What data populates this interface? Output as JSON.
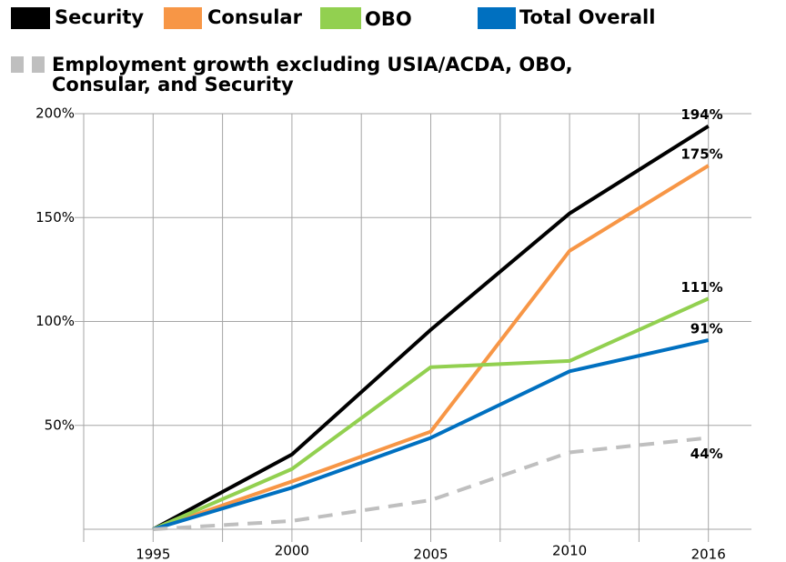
{
  "chart_data": {
    "type": "line",
    "categories": [
      "1995",
      "2000",
      "2005",
      "2010",
      "2016"
    ],
    "ylim": [
      0,
      200
    ],
    "yticks": [
      {
        "value": 50,
        "label": "50%"
      },
      {
        "value": 100,
        "label": "100%"
      },
      {
        "value": 150,
        "label": "150%"
      },
      {
        "value": 200,
        "label": "200%"
      }
    ],
    "grid": true,
    "legend": "top",
    "series": [
      {
        "name": "Security",
        "color": "#000000",
        "values": [
          0,
          36,
          96,
          152,
          194
        ],
        "value_labels": [
          null,
          null,
          null,
          null,
          "194%"
        ]
      },
      {
        "name": "Consular",
        "color": "#f79646",
        "values": [
          0,
          23,
          47,
          134,
          175
        ],
        "value_labels": [
          null,
          null,
          null,
          null,
          "175%"
        ]
      },
      {
        "name": "OBO",
        "color": "#92d050",
        "values": [
          0,
          29,
          78,
          81,
          111
        ],
        "value_labels": [
          null,
          null,
          null,
          null,
          "111%"
        ]
      },
      {
        "name": "Total Overall",
        "color": "#0070c0",
        "values": [
          0,
          20,
          44,
          76,
          91
        ],
        "value_labels": [
          null,
          null,
          null,
          null,
          "91%"
        ]
      },
      {
        "name": "Employment growth excluding USIA/ACDA, OBO, Consular, and Security",
        "color": "#bfbfbf",
        "dashed": true,
        "values": [
          0,
          4,
          14,
          37,
          44
        ],
        "value_labels": [
          null,
          null,
          null,
          null,
          "44%"
        ]
      }
    ]
  }
}
